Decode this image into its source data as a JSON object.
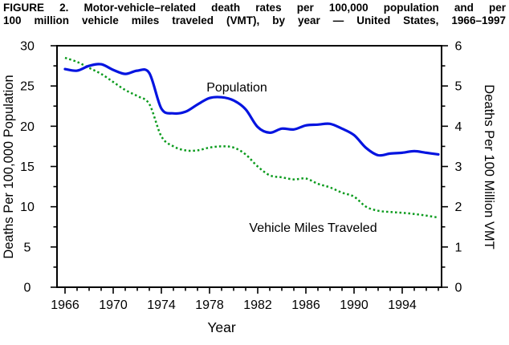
{
  "title": {
    "line1": "FIGURE 2. Motor-vehicle–related death rates per 100,000 population and per",
    "line2": "100 million vehicle miles traveled (VMT), by year — United States, 1966–1997"
  },
  "colors": {
    "population_line": "#0414e0",
    "vmt_line": "#0b9b1d",
    "axis": "#000000",
    "background": "#ffffff"
  },
  "chart_data": {
    "type": "line",
    "title": "FIGURE 2. Motor-vehicle–related death rates per 100,000 population and per 100 million vehicle miles traveled (VMT), by year — United States, 1966–1997",
    "xlabel": "Year",
    "ylabel_left": "Deaths Per 100,000 Population",
    "ylabel_right": "Deaths Per 100 Million VMT",
    "ylim_left": [
      0,
      30
    ],
    "ylim_right": [
      0,
      6
    ],
    "xlim": [
      1965.33,
      1997.27
    ],
    "grid": false,
    "legend": "inline-labels",
    "x_ticks_labeled": [
      1966,
      1970,
      1974,
      1978,
      1982,
      1986,
      1990,
      1994
    ],
    "x_minor_tick_every": 1,
    "y_left_ticks_labeled": [
      0,
      5,
      10,
      15,
      20,
      25,
      30
    ],
    "y_left_minor_every": 2.5,
    "y_right_ticks_labeled": [
      0,
      1,
      2,
      3,
      4,
      5,
      6
    ],
    "y_right_minor_every": 0.5,
    "x": [
      1966,
      1967,
      1968,
      1969,
      1970,
      1971,
      1972,
      1973,
      1974,
      1975,
      1976,
      1977,
      1978,
      1979,
      1980,
      1981,
      1982,
      1983,
      1984,
      1985,
      1986,
      1987,
      1988,
      1989,
      1990,
      1991,
      1992,
      1993,
      1994,
      1995,
      1996,
      1997
    ],
    "series": [
      {
        "name": "Population",
        "axis": "left",
        "line_style": "solid",
        "color": "#0414e0",
        "values": [
          27.1,
          26.9,
          27.5,
          27.7,
          27.0,
          26.5,
          26.9,
          26.6,
          22.2,
          21.6,
          21.8,
          22.7,
          23.5,
          23.6,
          23.2,
          22.1,
          19.9,
          19.2,
          19.7,
          19.6,
          20.1,
          20.2,
          20.3,
          19.7,
          18.9,
          17.3,
          16.4,
          16.6,
          16.7,
          16.9,
          16.7,
          16.5
        ]
      },
      {
        "name": "Vehicle Miles Traveled",
        "axis": "right",
        "line_style": "dotted",
        "color": "#0b9b1d",
        "values": [
          5.7,
          5.6,
          5.45,
          5.3,
          5.1,
          4.9,
          4.75,
          4.55,
          3.75,
          3.5,
          3.4,
          3.4,
          3.47,
          3.5,
          3.47,
          3.3,
          3.0,
          2.78,
          2.73,
          2.68,
          2.7,
          2.57,
          2.48,
          2.35,
          2.25,
          2.0,
          1.9,
          1.87,
          1.85,
          1.82,
          1.78,
          1.73
        ]
      }
    ]
  }
}
